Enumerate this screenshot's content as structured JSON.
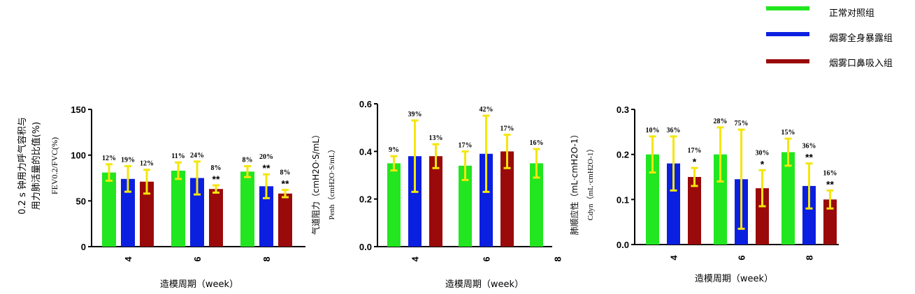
{
  "legend": {
    "items": [
      {
        "label": "正常对照组",
        "color": "#22e61f"
      },
      {
        "label": "烟雾全身暴露组",
        "color": "#0b1fe0"
      },
      {
        "label": "烟雾口鼻吸入组",
        "color": "#9a0a0a"
      }
    ]
  },
  "colors": {
    "error_bar": "#f5e60c",
    "axis": "#000000"
  },
  "chart_data": [
    {
      "type": "bar",
      "categories": [
        "4",
        "6",
        "8"
      ],
      "series": [
        {
          "name": "正常对照组",
          "values": [
            81,
            83,
            82
          ],
          "errors": [
            9,
            9,
            6
          ],
          "labels": [
            "12%",
            "11%",
            "8%"
          ],
          "stars": [
            "",
            "",
            ""
          ]
        },
        {
          "name": "烟雾全身暴露组",
          "values": [
            74,
            75,
            66
          ],
          "errors": [
            14,
            18,
            13
          ],
          "labels": [
            "19%",
            "24%",
            "20%"
          ],
          "stars": [
            "",
            "",
            "**"
          ]
        },
        {
          "name": "烟雾口鼻吸入组",
          "values": [
            71,
            63,
            58
          ],
          "errors": [
            13,
            4,
            4
          ],
          "labels": [
            "12%",
            "8%",
            "8%"
          ],
          "stars": [
            "",
            "**",
            "**"
          ]
        }
      ],
      "ylabel_cn_line1": "0.2 s 钟用力呼气容积与",
      "ylabel_cn_line2": "用力肺活量的比值(%)",
      "ylabel_en": "FEV0.2/FVC(%)",
      "xlabel": "造模周期（week）",
      "ylim": [
        0,
        150
      ],
      "yticks": [
        "0",
        "50",
        "100",
        "150"
      ],
      "grid": false
    },
    {
      "type": "bar",
      "categories": [
        "4",
        "6",
        "8"
      ],
      "series": [
        {
          "name": "正常对照组",
          "values": [
            0.35,
            0.34,
            0.35
          ],
          "errors": [
            0.03,
            0.06,
            0.06
          ],
          "labels": [
            "9%",
            "17%",
            "16%"
          ],
          "stars": [
            "",
            "",
            ""
          ]
        },
        {
          "name": "烟雾全身暴露组",
          "values": [
            0.38,
            0.39,
            null
          ],
          "errors": [
            0.15,
            0.16,
            null
          ],
          "labels": [
            "39%",
            "42%",
            ""
          ],
          "stars": [
            "",
            "",
            ""
          ]
        },
        {
          "name": "烟雾口鼻吸入组",
          "values": [
            0.38,
            0.4,
            null
          ],
          "errors": [
            0.05,
            0.07,
            null
          ],
          "labels": [
            "13%",
            "17%",
            ""
          ],
          "stars": [
            "",
            "",
            ""
          ]
        }
      ],
      "ylabel_cn": "气道阻力（cmH2O·S/mL）",
      "ylabel_en": "Penh（cmH2O·S/mL）",
      "xlabel": "造模周期（week）",
      "ylim": [
        0,
        0.6
      ],
      "yticks": [
        "0.0",
        "0.2",
        "0.4",
        "0.6"
      ],
      "grid": false
    },
    {
      "type": "bar",
      "categories": [
        "4",
        "6",
        "8"
      ],
      "series": [
        {
          "name": "正常对照组",
          "values": [
            0.2,
            0.2,
            0.205
          ],
          "errors": [
            0.04,
            0.06,
            0.03
          ],
          "labels": [
            "10%",
            "28%",
            "15%"
          ],
          "stars": [
            "",
            "",
            ""
          ]
        },
        {
          "name": "烟雾全身暴露组",
          "values": [
            0.18,
            0.145,
            0.13
          ],
          "errors": [
            0.06,
            0.11,
            0.05
          ],
          "labels": [
            "36%",
            "75%",
            "36%"
          ],
          "stars": [
            "",
            "",
            "**"
          ]
        },
        {
          "name": "烟雾口鼻吸入组",
          "values": [
            0.15,
            0.125,
            0.1
          ],
          "errors": [
            0.02,
            0.04,
            0.02
          ],
          "labels": [
            "17%",
            "30%",
            "16%"
          ],
          "stars": [
            "*",
            "*",
            "**"
          ]
        }
      ],
      "ylabel_cn": "肺顺应性（mL·cmH2O-1）",
      "ylabel_en": "Cdyn（mL·cmH2O-1）",
      "xlabel": "造模周期（week）",
      "ylim": [
        0,
        0.3
      ],
      "yticks": [
        "0.0",
        "0.1",
        "0.2",
        "0.3"
      ],
      "grid": false
    }
  ]
}
